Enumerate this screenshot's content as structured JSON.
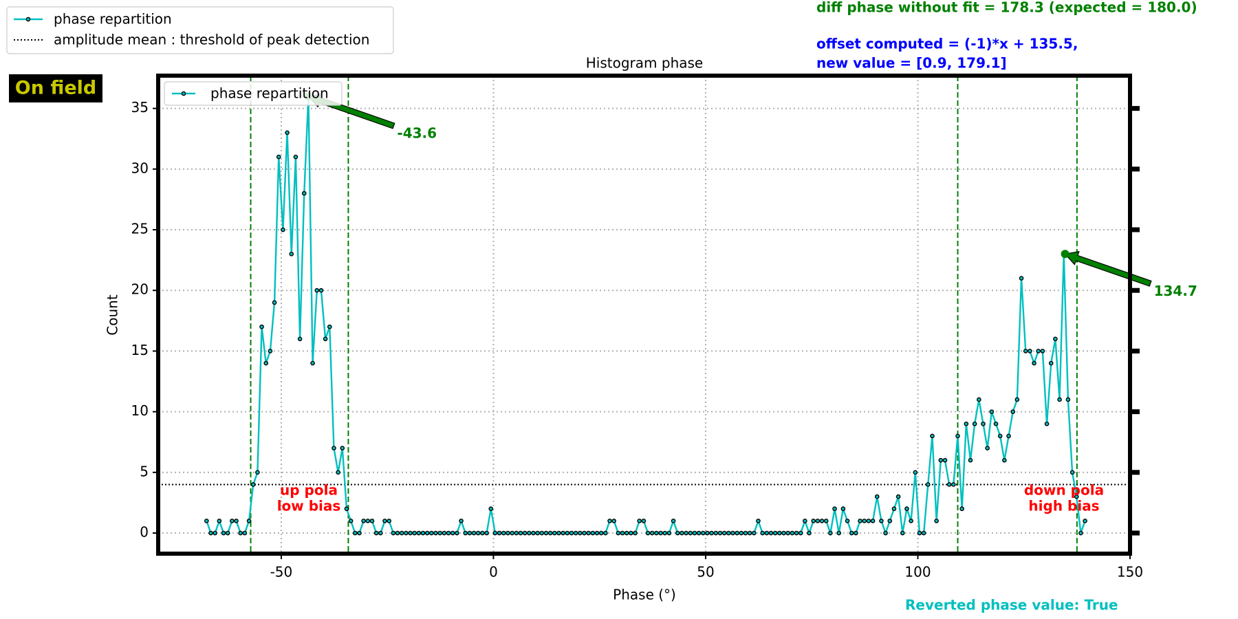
{
  "chart_data": {
    "type": "line",
    "title": "Histogram phase",
    "xlabel": "Phase (°)",
    "ylabel": "Count",
    "badge": "On field",
    "diff_text": "diff phase without fit = 178.3 (expected = 180.0)",
    "offset_text": "offset computed = (-1)*x + 135.5,",
    "new_value_text": "new value = [0.9, 179.1]",
    "reverted_text": "Reverted phase value: True",
    "legend": "upper left",
    "grid": true,
    "xlim": [
      -79,
      150
    ],
    "ylim": [
      -1.7,
      37.7
    ],
    "xticks": [
      -50,
      0,
      50,
      100,
      150
    ],
    "yticks": [
      0,
      5,
      10,
      15,
      20,
      25,
      30,
      35
    ],
    "x": [
      -67.6,
      -66.6,
      -65.6,
      -64.6,
      -63.6,
      -62.6,
      -61.6,
      -60.6,
      -59.6,
      -58.6,
      -57.6,
      -56.6,
      -55.6,
      -54.6,
      -53.6,
      -52.6,
      -51.6,
      -50.6,
      -49.6,
      -48.6,
      -47.6,
      -46.6,
      -45.6,
      -44.6,
      -43.6,
      -42.6,
      -41.6,
      -40.6,
      -39.6,
      -38.6,
      -37.6,
      -36.6,
      -35.6,
      -34.6,
      -33.6,
      -32.6,
      -31.6,
      -30.6,
      -29.6,
      -28.6,
      -27.6,
      -26.6,
      -25.6,
      -24.6,
      -23.6,
      -22.6,
      -21.6,
      -20.6,
      -19.6,
      -18.6,
      -17.6,
      -16.6,
      -15.6,
      -14.6,
      -13.6,
      -12.6,
      -11.6,
      -10.6,
      -9.6,
      -8.6,
      -7.6,
      -6.6,
      -5.6,
      -4.6,
      -3.6,
      -2.6,
      -1.6,
      -0.6,
      0.4,
      1.4,
      2.4,
      3.4,
      4.4,
      5.4,
      6.4,
      7.4,
      8.4,
      9.4,
      10.4,
      11.4,
      12.4,
      13.4,
      14.4,
      15.4,
      16.4,
      17.4,
      18.4,
      19.4,
      20.4,
      21.4,
      22.4,
      23.4,
      24.4,
      25.4,
      26.4,
      27.4,
      28.4,
      29.4,
      30.4,
      31.4,
      32.4,
      33.4,
      34.4,
      35.4,
      36.4,
      37.4,
      38.4,
      39.4,
      40.4,
      41.4,
      42.4,
      43.4,
      44.4,
      45.4,
      46.4,
      47.4,
      48.4,
      49.4,
      50.4,
      51.4,
      52.4,
      53.4,
      54.4,
      55.4,
      56.4,
      57.4,
      58.4,
      59.4,
      60.4,
      61.4,
      62.4,
      63.4,
      64.4,
      65.4,
      66.4,
      67.4,
      68.4,
      69.4,
      70.4,
      71.4,
      72.4,
      73.4,
      74.4,
      75.4,
      76.4,
      77.4,
      78.4,
      79.4,
      80.4,
      81.4,
      82.4,
      83.4,
      84.4,
      85.4,
      86.4,
      87.4,
      88.4,
      89.4,
      90.4,
      91.4,
      92.4,
      93.4,
      94.4,
      95.4,
      96.4,
      97.4,
      98.4,
      99.4,
      100.4,
      101.4,
      102.4,
      103.4,
      104.4,
      105.4,
      106.4,
      107.4,
      108.4,
      109.4,
      110.4,
      111.4,
      112.4,
      113.4,
      114.4,
      115.4,
      116.4,
      117.4,
      118.4,
      119.4,
      120.4,
      121.4,
      122.4,
      123.4,
      124.4,
      125.4,
      126.4,
      127.4,
      128.4,
      129.4,
      130.4,
      131.4,
      132.4,
      133.4,
      134.4,
      135.4,
      136.4,
      137.4,
      138.4,
      139.4
    ],
    "series": [
      {
        "name": "phase repartition",
        "color": "#00bfbf",
        "values": [
          1,
          0,
          0,
          1,
          0,
          0,
          1,
          1,
          0,
          0,
          1,
          4,
          5,
          17,
          14,
          15,
          19,
          31,
          25,
          33,
          23,
          31,
          16,
          28,
          36,
          14,
          20,
          20,
          16,
          17,
          7,
          5,
          7,
          2,
          1,
          0,
          0,
          1,
          1,
          1,
          0,
          0,
          1,
          1,
          0,
          0,
          0,
          0,
          0,
          0,
          0,
          0,
          0,
          0,
          0,
          0,
          0,
          0,
          0,
          0,
          1,
          0,
          0,
          0,
          0,
          0,
          0,
          2,
          0,
          0,
          0,
          0,
          0,
          0,
          0,
          0,
          0,
          0,
          0,
          0,
          0,
          0,
          0,
          0,
          0,
          0,
          0,
          0,
          0,
          0,
          0,
          0,
          0,
          0,
          0,
          1,
          1,
          0,
          0,
          0,
          0,
          0,
          1,
          1,
          0,
          0,
          0,
          0,
          0,
          0,
          1,
          0,
          0,
          0,
          0,
          0,
          0,
          0,
          0,
          0,
          0,
          0,
          0,
          0,
          0,
          0,
          0,
          0,
          0,
          0,
          1,
          0,
          0,
          0,
          0,
          0,
          0,
          0,
          0,
          0,
          0,
          1,
          0,
          1,
          1,
          1,
          1,
          0,
          2,
          0,
          2,
          1,
          0,
          0,
          1,
          1,
          1,
          1,
          3,
          1,
          0,
          1,
          2,
          3,
          0,
          2,
          1,
          5,
          0,
          0,
          4,
          8,
          1,
          6,
          6,
          4,
          4,
          8,
          2,
          9,
          6,
          9,
          11,
          9,
          7,
          10,
          9,
          8,
          6,
          8,
          10,
          11,
          21,
          15,
          15,
          14,
          15,
          15,
          9,
          14,
          16,
          11,
          23,
          11,
          5,
          3,
          0,
          1
        ]
      }
    ],
    "threshold": {
      "name": "amplitude mean : threshold of peak detection",
      "value": 4,
      "color": "#000000"
    },
    "vlines": {
      "color": "#008000",
      "values": [
        -57.2,
        -34.2,
        109.4,
        137.5
      ]
    },
    "peaks": {
      "color": "#008000",
      "points": [
        {
          "x": -43.6,
          "y": 36,
          "label": "-43.6"
        },
        {
          "x": 134.7,
          "y": 23,
          "label": "134.7"
        }
      ]
    },
    "region_labels": {
      "color": "#ff0000",
      "items": [
        [
          "up pola",
          "low bias"
        ],
        [
          "down pola",
          "high bias"
        ]
      ]
    }
  }
}
